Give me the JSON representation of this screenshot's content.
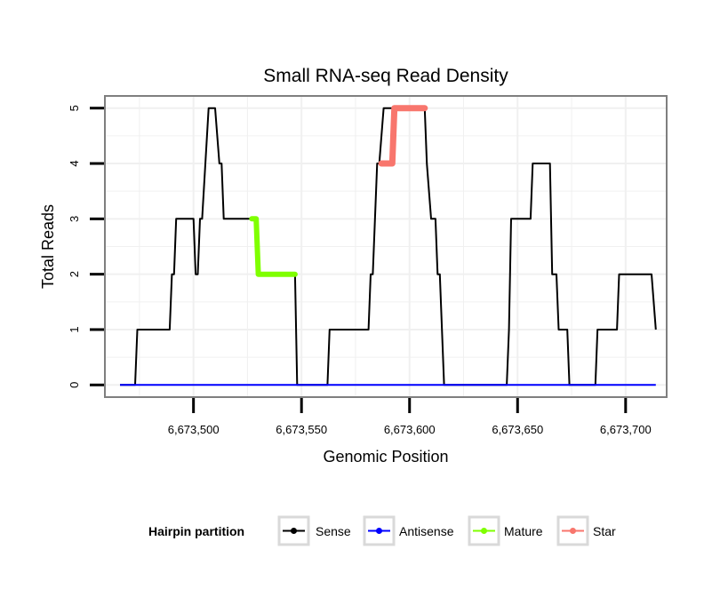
{
  "chart_data": {
    "type": "line",
    "title": "Small RNA-seq Read Density",
    "xlabel": "Genomic Position",
    "ylabel": "Total Reads",
    "xlim": [
      6673459,
      6673719
    ],
    "ylim": [
      -0.22,
      5.22
    ],
    "x_ticks": [
      6673500,
      6673550,
      6673600,
      6673650,
      6673700
    ],
    "x_tick_labels": [
      "6,673,500",
      "6,673,550",
      "6,673,600",
      "6,673,650",
      "6,673,700"
    ],
    "y_ticks": [
      0,
      1,
      2,
      3,
      4,
      5
    ],
    "y_tick_labels": [
      "0",
      "1",
      "2",
      "3",
      "4",
      "5"
    ],
    "grid": true,
    "legend_position": "bottom",
    "legend_title": "Hairpin partition",
    "series": [
      {
        "name": "Sense",
        "color": "#000000",
        "x": [
          6673466,
          6673473,
          6673474,
          6673475,
          6673489,
          6673490,
          6673491,
          6673492,
          6673493,
          6673500,
          6673501,
          6673502,
          6673503,
          6673504,
          6673507,
          6673508,
          6673510,
          6673512,
          6673513,
          6673514,
          6673515,
          6673525,
          6673529,
          6673530,
          6673540,
          6673545,
          6673547,
          6673548,
          6673562,
          6673563,
          6673564,
          6673566,
          6673581,
          6673582,
          6673583,
          6673585,
          6673586,
          6673588,
          6673590,
          6673592,
          6673607,
          6673608,
          6673610,
          6673612,
          6673613,
          6673614,
          6673616,
          6673645,
          6673646,
          6673647,
          6673648,
          6673656,
          6673657,
          6673658,
          6673665,
          6673666,
          6673668,
          6673669,
          6673670,
          6673673,
          6673674,
          6673676,
          6673686,
          6673687,
          6673689,
          6673696,
          6673697,
          6673698,
          6673712,
          6673714
        ],
        "values": [
          0,
          0,
          1,
          1,
          1,
          2,
          2,
          3,
          3,
          3,
          2,
          2,
          3,
          3,
          5,
          5,
          5,
          4,
          4,
          3,
          3,
          3,
          3,
          2,
          2,
          2,
          2,
          0,
          0,
          1,
          1,
          1,
          1,
          2,
          2,
          4,
          4,
          5,
          5,
          5,
          5,
          4,
          3,
          3,
          2,
          2,
          0,
          0,
          1,
          3,
          3,
          3,
          4,
          4,
          4,
          2,
          2,
          1,
          1,
          1,
          0,
          0,
          0,
          1,
          1,
          1,
          2,
          2,
          2,
          1
        ]
      },
      {
        "name": "Antisense",
        "color": "#0000ff",
        "x": [
          6673466,
          6673714
        ],
        "values": [
          0,
          0
        ]
      },
      {
        "name": "Mature",
        "color": "#7fff00",
        "x": [
          6673527,
          6673529,
          6673530,
          6673547
        ],
        "values": [
          3,
          3,
          2,
          2
        ]
      },
      {
        "name": "Star",
        "color": "#f8766d",
        "x": [
          6673587,
          6673592,
          6673593,
          6673607
        ],
        "values": [
          4,
          4,
          5,
          5
        ]
      }
    ]
  }
}
